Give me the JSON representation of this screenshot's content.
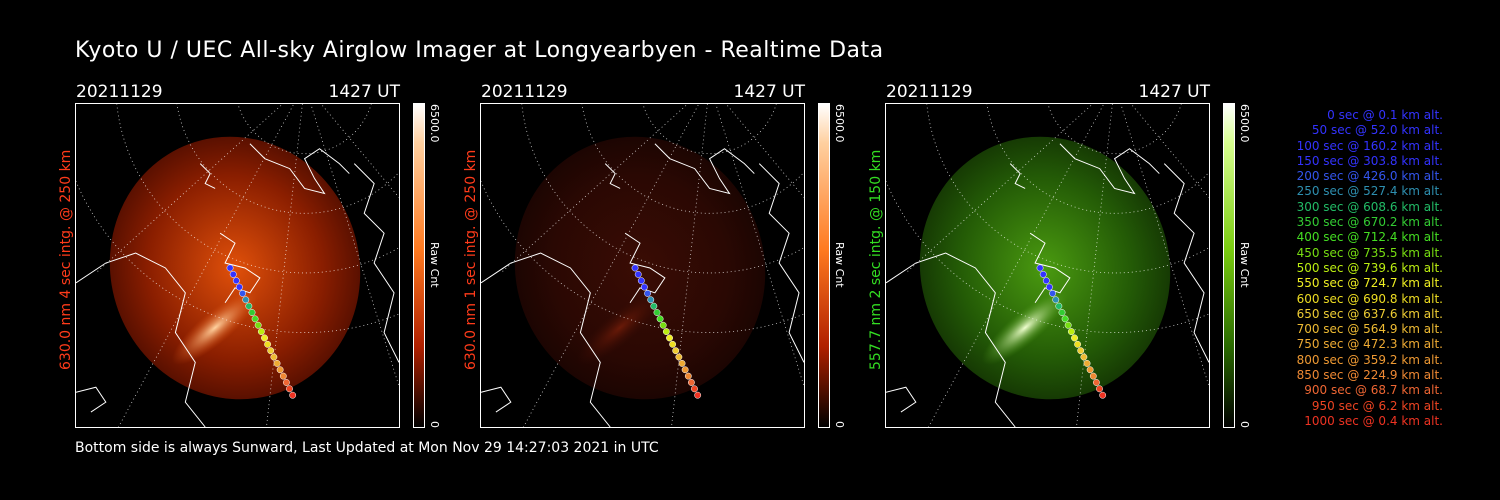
{
  "title": "Kyoto U / UEC All-sky Airglow Imager at Longyearbyen - Realtime Data",
  "footer": "Bottom side is always Sunward, Last Updated at Mon Nov 29 14:27:03 2021 in UTC",
  "panels": [
    {
      "date": "20211129",
      "time": "1427 UT",
      "label": "630.0 nm 4 sec intg. @ 250 km",
      "label_color": "#ff3b1a",
      "cbar_max": "6500.0",
      "cbar_min": "0",
      "cbar_unit": "Raw Cnt",
      "colormap": "red"
    },
    {
      "date": "20211129",
      "time": "1427 UT",
      "label": "630.0 nm 1 sec intg. @ 250 km",
      "label_color": "#ff3b1a",
      "cbar_max": "6500.0",
      "cbar_min": "0",
      "cbar_unit": "Raw Cnt",
      "colormap": "red-dim"
    },
    {
      "date": "20211129",
      "time": "1427 UT",
      "label": "557.7 nm 2 sec intg. @ 150 km",
      "label_color": "#33dd22",
      "cbar_max": "6500.0",
      "cbar_min": "0",
      "cbar_unit": "Raw Cnt",
      "colormap": "green"
    }
  ],
  "legend": [
    {
      "text": "0 sec @   0.1 km alt.",
      "color": "#3333ff"
    },
    {
      "text": "50 sec @  52.0 km alt.",
      "color": "#3333ff"
    },
    {
      "text": "100 sec @ 160.2 km alt.",
      "color": "#3333ff"
    },
    {
      "text": "150 sec @ 303.8 km alt.",
      "color": "#3333ff"
    },
    {
      "text": "200 sec @ 426.0 km alt.",
      "color": "#3355ee"
    },
    {
      "text": "250 sec @ 527.4 km alt.",
      "color": "#2e8fb0"
    },
    {
      "text": "300 sec @ 608.6 km alt.",
      "color": "#22bb66"
    },
    {
      "text": "350 sec @ 670.2 km alt.",
      "color": "#33cc33"
    },
    {
      "text": "400 sec @ 712.4 km alt.",
      "color": "#44dd22"
    },
    {
      "text": "450 sec @ 735.5 km alt.",
      "color": "#77dd11"
    },
    {
      "text": "500 sec @ 739.6 km alt.",
      "color": "#bbee11"
    },
    {
      "text": "550 sec @ 724.7 km alt.",
      "color": "#eeee22"
    },
    {
      "text": "600 sec @ 690.8 km alt.",
      "color": "#eedd22"
    },
    {
      "text": "650 sec @ 637.6 km alt.",
      "color": "#eecc33"
    },
    {
      "text": "700 sec @ 564.9 km alt.",
      "color": "#eebb33"
    },
    {
      "text": "750 sec @ 472.3 km alt.",
      "color": "#eeaa33"
    },
    {
      "text": "800 sec @ 359.2 km alt.",
      "color": "#ee9933"
    },
    {
      "text": "850 sec @ 224.9 km alt.",
      "color": "#ee8833"
    },
    {
      "text": "900 sec @  68.7 km alt.",
      "color": "#ee6633"
    },
    {
      "text": "950 sec @   6.2 km alt.",
      "color": "#ee4422"
    },
    {
      "text": "1000 sec @   0.4 km alt.",
      "color": "#ee3322"
    }
  ]
}
